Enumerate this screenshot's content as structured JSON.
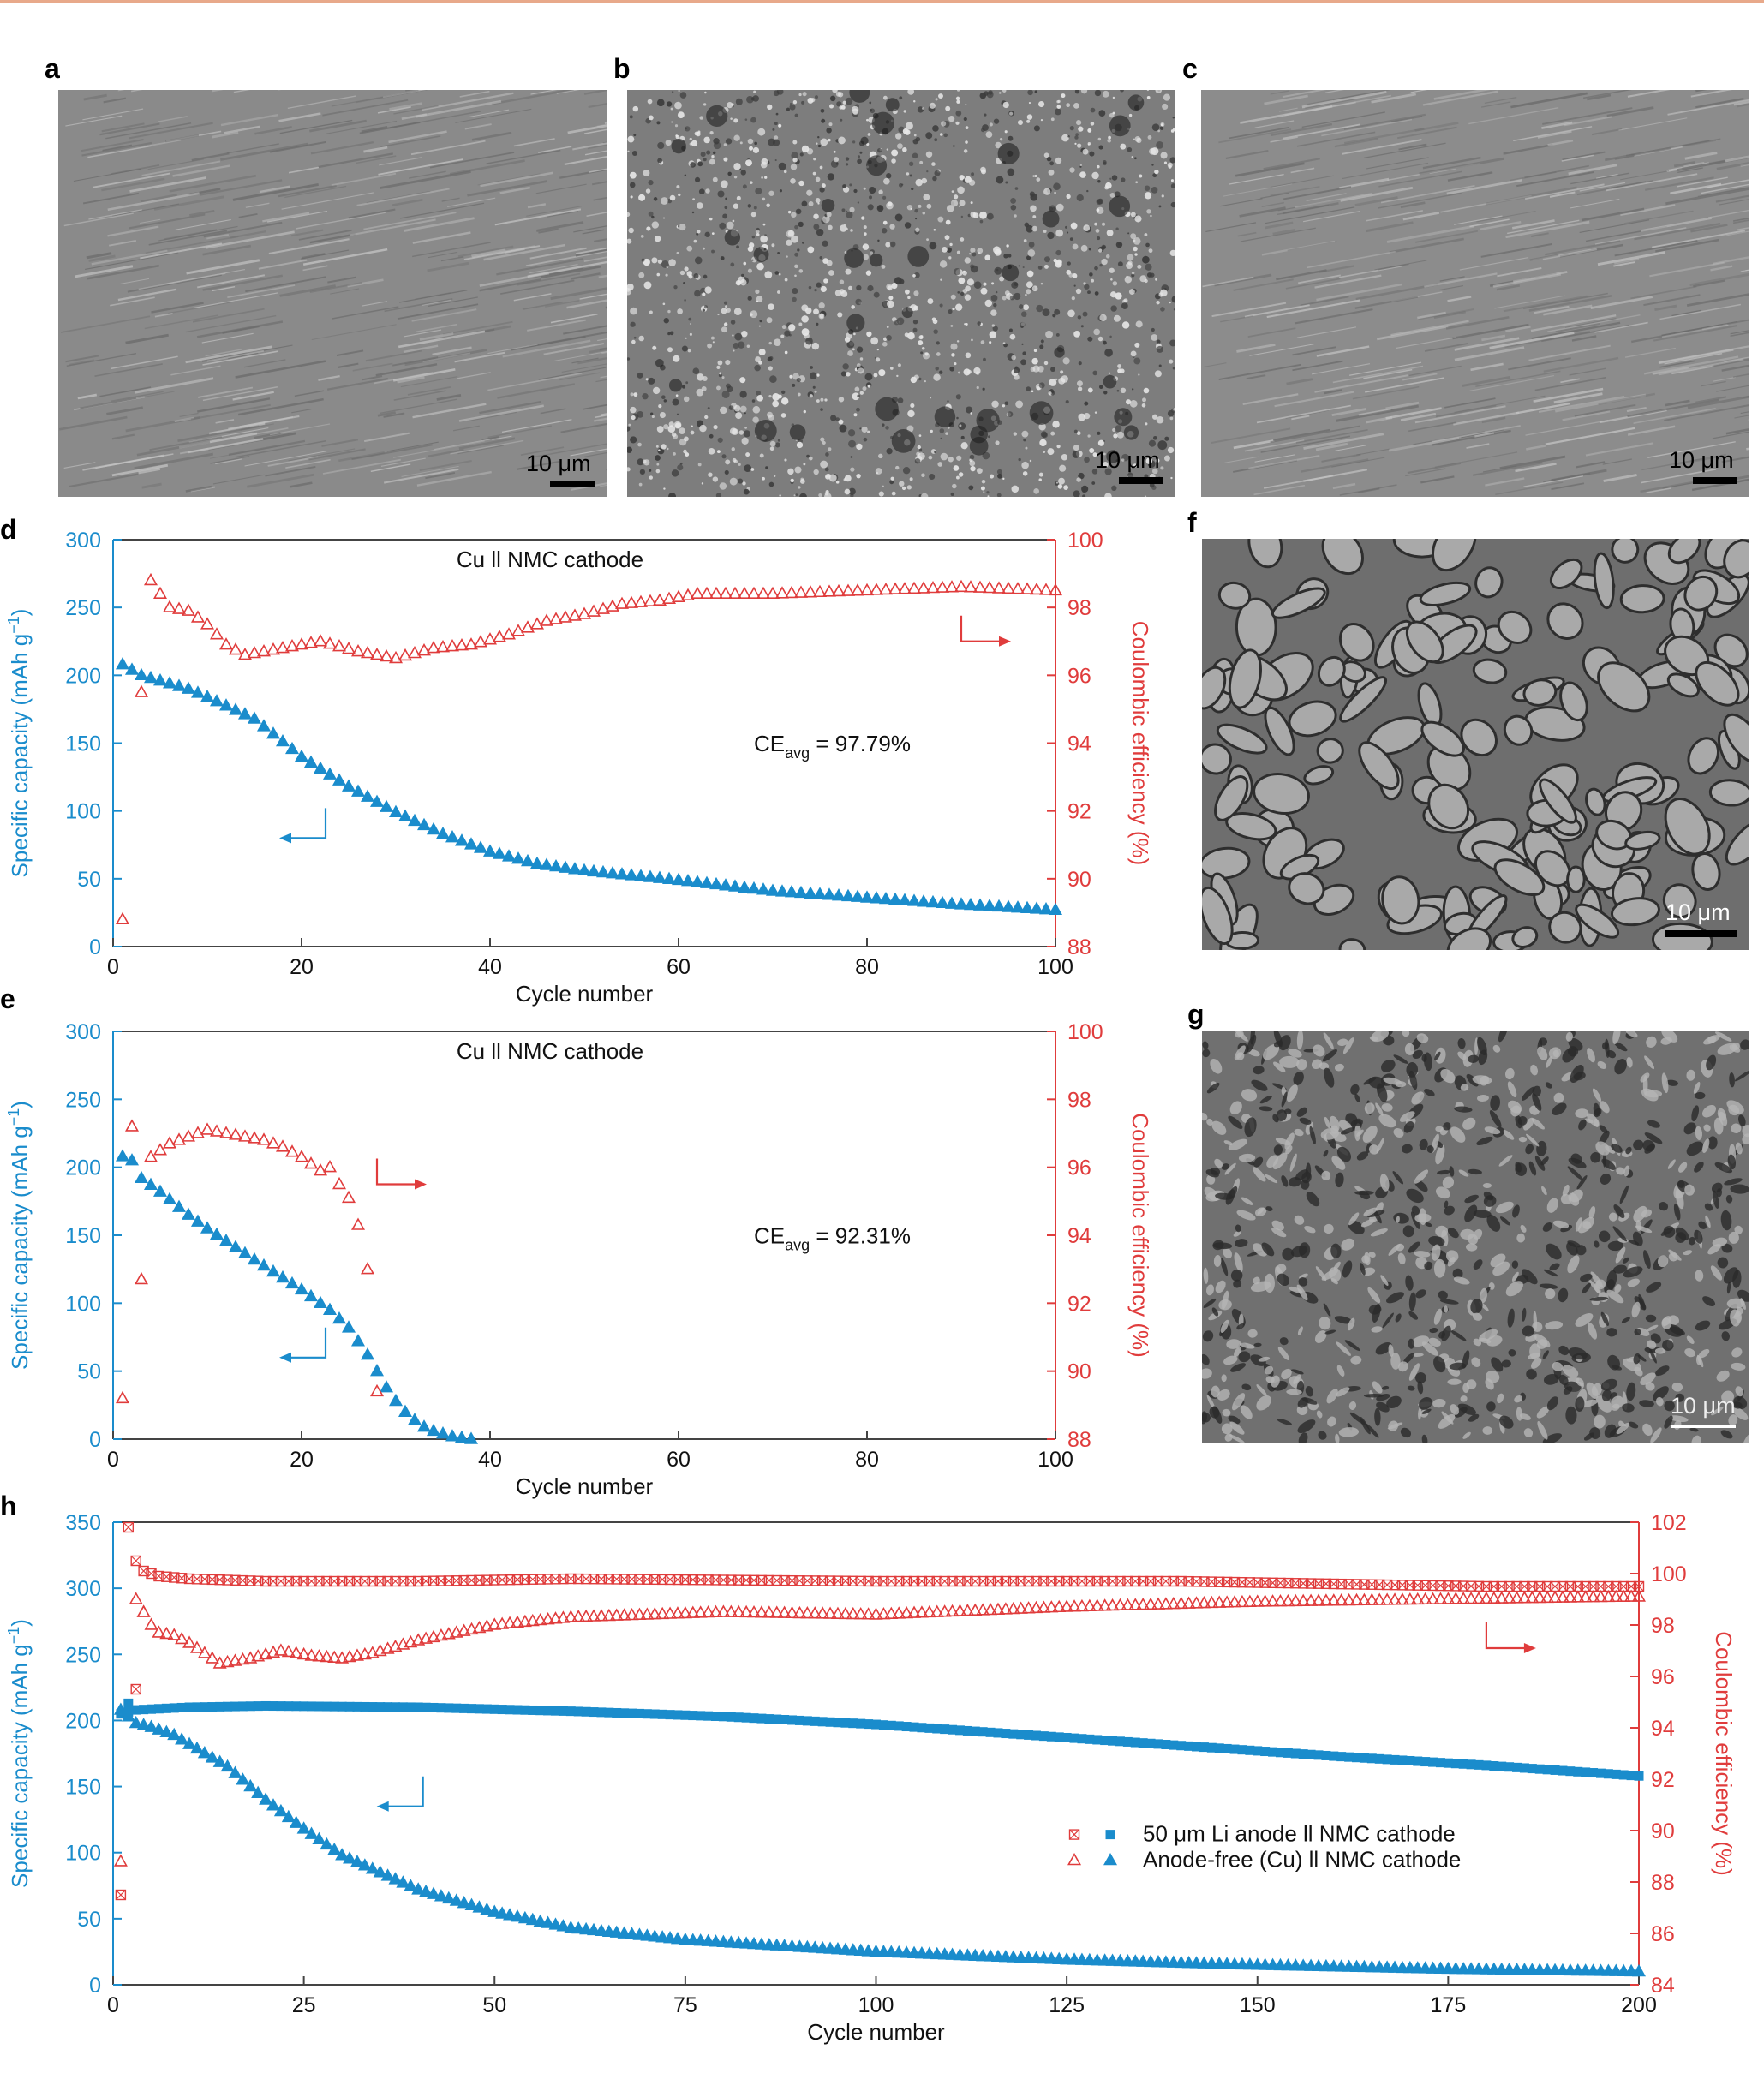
{
  "panel_letters": {
    "a": "a",
    "b": "b",
    "c": "c",
    "d": "d",
    "e": "e",
    "f": "f",
    "g": "g",
    "h": "h"
  },
  "scale_bars": {
    "a": "10 μm",
    "b": "10 μm",
    "c": "10 μm",
    "f": "10 μm",
    "g": "10 μm"
  },
  "colors": {
    "capacity": "#1a8ccc",
    "ce": "#e03c3c",
    "frame": "#444444",
    "header_line": "#e8a98a"
  },
  "sem_images": {
    "a": {
      "style": "smooth-streaked",
      "tone": "#8a8a8a"
    },
    "b": {
      "style": "porous-bright",
      "tone": "#7d7d7d"
    },
    "c": {
      "style": "smooth-streaked",
      "tone": "#8c8c8c"
    },
    "f": {
      "style": "large-grains",
      "tone": "#6e6e6e"
    },
    "g": {
      "style": "fine-grains",
      "tone": "#707070"
    }
  },
  "chart_data": [
    {
      "id": "d",
      "type": "scatter",
      "title": "Cu  ll NMC cathode",
      "annotation": {
        "prefix": "CE",
        "subscript": "avg",
        "suffix": " = 97.79%"
      },
      "xlabel": "Cycle number",
      "ylabel_left": "Specific capacity (mAh g",
      "ylabel_left_sup": "−1",
      "ylabel_left_end": ")",
      "ylabel_right": "Coulombic efficiency (%)",
      "xlim": [
        0,
        100
      ],
      "xticks": [
        0,
        20,
        40,
        60,
        80,
        100
      ],
      "ylim_left": [
        0,
        300
      ],
      "yticks_left": [
        0,
        50,
        100,
        150,
        200,
        250,
        300
      ],
      "ylim_right": [
        88,
        100
      ],
      "yticks_right": [
        88,
        90,
        92,
        94,
        96,
        98,
        100
      ],
      "axis_arrows": {
        "left_axis_arrow_at": [
          18,
          80
        ],
        "right_axis_arrow_at": [
          90,
          97
        ]
      },
      "series": [
        {
          "axis": "left",
          "marker": "filled-triangle",
          "x_start": 1,
          "x_end": 100,
          "x_key": [
            1,
            3,
            5,
            8,
            10,
            15,
            20,
            25,
            30,
            35,
            40,
            45,
            50,
            60,
            70,
            80,
            90,
            100
          ],
          "y_key": [
            208,
            200,
            196,
            190,
            184,
            168,
            140,
            118,
            99,
            83,
            70,
            61,
            56,
            49,
            41,
            36,
            31,
            27
          ]
        },
        {
          "axis": "right",
          "marker": "open-triangle",
          "x_start": 4,
          "x_end": 100,
          "x_key": [
            4,
            5,
            6,
            8,
            10,
            12,
            14,
            18,
            22,
            26,
            30,
            34,
            38,
            42,
            46,
            50,
            54,
            58,
            62,
            70,
            80,
            90,
            100
          ],
          "y_key": [
            98.8,
            98.4,
            98.0,
            97.9,
            97.5,
            96.9,
            96.6,
            96.8,
            97.0,
            96.7,
            96.5,
            96.8,
            96.9,
            97.2,
            97.6,
            97.8,
            98.1,
            98.2,
            98.4,
            98.4,
            98.5,
            98.6,
            98.5
          ],
          "extra_points": [
            [
              1,
              88.8
            ],
            [
              3,
              95.5
            ]
          ]
        }
      ]
    },
    {
      "id": "e",
      "type": "scatter",
      "title": "Cu  ll NMC cathode",
      "annotation": {
        "prefix": "CE",
        "subscript": "avg",
        "suffix": " = 92.31%"
      },
      "xlabel": "Cycle number",
      "ylabel_left": "Specific capacity (mAh g",
      "ylabel_left_sup": "−1",
      "ylabel_left_end": ")",
      "ylabel_right": "Coulombic efficiency (%)",
      "xlim": [
        0,
        100
      ],
      "xticks": [
        0,
        20,
        40,
        60,
        80,
        100
      ],
      "ylim_left": [
        0,
        300
      ],
      "yticks_left": [
        0,
        50,
        100,
        150,
        200,
        250,
        300
      ],
      "ylim_right": [
        88,
        100
      ],
      "yticks_right": [
        88,
        90,
        92,
        94,
        96,
        98,
        100
      ],
      "axis_arrows": {
        "left_axis_arrow_at": [
          18,
          60
        ],
        "right_axis_arrow_at": [
          28,
          95.5
        ]
      },
      "series": [
        {
          "axis": "left",
          "marker": "filled-triangle",
          "x_start": 1,
          "x_end": 38,
          "x_key": [
            1,
            2,
            3,
            5,
            8,
            10,
            15,
            20,
            23,
            25,
            26,
            27,
            28,
            29,
            30,
            31,
            32,
            33,
            34,
            35,
            36,
            37,
            38
          ],
          "y_key": [
            208,
            205,
            192,
            182,
            165,
            155,
            132,
            110,
            95,
            82,
            72,
            62,
            50,
            38,
            28,
            20,
            14,
            9,
            6,
            4,
            2,
            1,
            0
          ]
        },
        {
          "axis": "right",
          "marker": "open-triangle",
          "x_start": 4,
          "x_end": 23,
          "x_key": [
            4,
            6,
            8,
            10,
            12,
            14,
            16,
            18,
            20,
            22,
            23
          ],
          "y_key": [
            96.3,
            96.7,
            96.9,
            97.1,
            97.0,
            96.9,
            96.8,
            96.6,
            96.3,
            95.9,
            96.0
          ],
          "extra_points": [
            [
              1,
              89.2
            ],
            [
              2,
              97.2
            ],
            [
              3,
              92.7
            ],
            [
              24,
              95.5
            ],
            [
              25,
              95.1
            ],
            [
              26,
              94.3
            ],
            [
              27,
              93.0
            ],
            [
              28,
              89.4
            ]
          ]
        }
      ]
    },
    {
      "id": "h",
      "type": "scatter",
      "xlabel": "Cycle number",
      "ylabel_left": "Specific capacity (mAh g",
      "ylabel_left_sup": "−1",
      "ylabel_left_end": ")",
      "ylabel_right": "Coulombic efficiency (%)",
      "xlim": [
        0,
        200
      ],
      "xticks": [
        0,
        25,
        50,
        75,
        100,
        125,
        150,
        175,
        200
      ],
      "ylim_left": [
        0,
        350
      ],
      "yticks_left": [
        0,
        50,
        100,
        150,
        200,
        250,
        300,
        350
      ],
      "ylim_right": [
        84,
        102
      ],
      "yticks_right": [
        84,
        86,
        88,
        90,
        92,
        94,
        96,
        98,
        100,
        102
      ],
      "axis_arrows": {
        "left_axis_arrow_at": [
          35,
          135
        ],
        "right_axis_arrow_at": [
          180,
          97.1
        ]
      },
      "legend": [
        {
          "label": "50 μm Li anode  ll NMC cathode",
          "markers": [
            "crossed-square",
            "filled-square"
          ]
        },
        {
          "label": "Anode-free (Cu) ll NMC cathode",
          "markers": [
            "open-triangle",
            "filled-triangle"
          ]
        }
      ],
      "series": [
        {
          "name": "50 μm Li anode  ll NMC cathode",
          "axis": "left",
          "marker": "filled-square",
          "x_start": 1,
          "x_end": 200,
          "x_key": [
            1,
            3,
            10,
            20,
            40,
            60,
            80,
            100,
            120,
            140,
            160,
            180,
            200
          ],
          "y_key": [
            205,
            208,
            210,
            211,
            210,
            207,
            203,
            197,
            189,
            181,
            173,
            166,
            158
          ],
          "extra_points": [
            [
              2,
              213
            ]
          ]
        },
        {
          "name": "50 μm Li anode  ll NMC cathode",
          "axis": "right",
          "marker": "crossed-square",
          "x_start": 3,
          "x_end": 200,
          "x_key": [
            3,
            4,
            6,
            10,
            20,
            40,
            60,
            100,
            140,
            160,
            180,
            200
          ],
          "y_key": [
            100.5,
            100.1,
            99.9,
            99.8,
            99.7,
            99.7,
            99.8,
            99.7,
            99.7,
            99.6,
            99.5,
            99.5
          ],
          "extra_points": [
            [
              1,
              87.5
            ],
            [
              2,
              101.8
            ],
            [
              3,
              95.5
            ]
          ]
        },
        {
          "name": "Anode-free (Cu) ll NMC cathode",
          "axis": "left",
          "marker": "filled-triangle",
          "x_start": 1,
          "x_end": 200,
          "x_key": [
            1,
            3,
            5,
            8,
            10,
            15,
            20,
            25,
            30,
            35,
            40,
            50,
            60,
            75,
            100,
            125,
            150,
            175,
            200
          ],
          "y_key": [
            208,
            198,
            195,
            189,
            182,
            165,
            140,
            118,
            98,
            85,
            72,
            55,
            43,
            34,
            25,
            19,
            15,
            12,
            10
          ]
        },
        {
          "name": "Anode-free (Cu) ll NMC cathode",
          "axis": "right",
          "marker": "open-triangle",
          "x_start": 4,
          "x_end": 200,
          "x_key": [
            4,
            5,
            6,
            8,
            10,
            12,
            14,
            18,
            22,
            26,
            30,
            34,
            40,
            50,
            60,
            80,
            100,
            125,
            150,
            175,
            200
          ],
          "y_key": [
            98.5,
            98.0,
            97.7,
            97.6,
            97.3,
            96.9,
            96.5,
            96.7,
            97.0,
            96.8,
            96.7,
            96.9,
            97.4,
            98.0,
            98.3,
            98.5,
            98.4,
            98.7,
            98.9,
            99.0,
            99.1
          ],
          "extra_points": [
            [
              1,
              88.8
            ],
            [
              3,
              99.0
            ],
            [
              4,
              98.5
            ]
          ]
        }
      ]
    }
  ]
}
